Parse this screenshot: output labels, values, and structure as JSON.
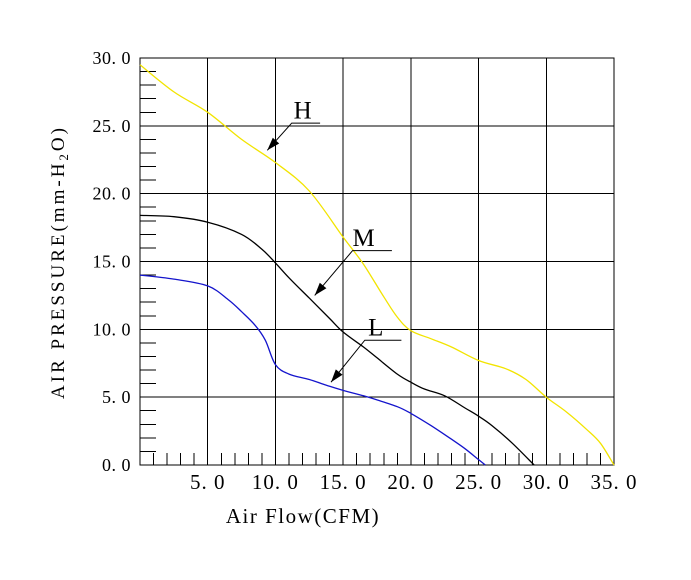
{
  "page": {
    "background_color": "#ffffff"
  },
  "chart_data": {
    "type": "line",
    "title": "",
    "xlabel": "Air Flow(CFM)",
    "ylabel": "AIR PRESSURE(mm-H2O)",
    "ylabel_display": {
      "prefix": "AIR PRESSURE(mm-H",
      "sub": "2",
      "suffix": "O)"
    },
    "xlim": [
      0,
      35
    ],
    "ylim": [
      0,
      30
    ],
    "x_ticks": [
      5,
      10,
      15,
      20,
      25,
      30,
      35
    ],
    "x_tick_labels": [
      "5. 0",
      "10. 0",
      "15. 0",
      "20. 0",
      "25. 0",
      "30. 0",
      "35. 0"
    ],
    "y_ticks": [
      0,
      5,
      10,
      15,
      20,
      25,
      30
    ],
    "y_tick_labels": [
      "0. 0",
      "5. 0",
      "10. 0",
      "15. 0",
      "20. 0",
      "25. 0",
      "30. 0"
    ],
    "minor_tick_interval": 1,
    "grid": true,
    "axis_color": "#000000",
    "legend_position": "inline-leader-labels",
    "series": [
      {
        "name": "H",
        "color": "#f2e400",
        "x": [
          0,
          2.5,
          5,
          7.5,
          10,
          12.5,
          15,
          16.5,
          18,
          19,
          20,
          21.5,
          23,
          25,
          27,
          28.5,
          30,
          31.5,
          33,
          34,
          35
        ],
        "y": [
          29.5,
          27.5,
          26.0,
          24.0,
          22.3,
          20.2,
          16.8,
          14.8,
          12.4,
          10.9,
          9.9,
          9.3,
          8.7,
          7.7,
          7.1,
          6.3,
          5.0,
          3.9,
          2.6,
          1.6,
          0
        ]
      },
      {
        "name": "M",
        "color": "#000000",
        "x": [
          0,
          2.5,
          5,
          7.5,
          9,
          10,
          11,
          12.5,
          14,
          15,
          16.5,
          17.5,
          19,
          20,
          21,
          22.5,
          24,
          25,
          26,
          27.5,
          29.1
        ],
        "y": [
          18.4,
          18.3,
          17.9,
          17.0,
          15.9,
          14.9,
          13.8,
          12.3,
          10.8,
          9.8,
          8.7,
          7.9,
          6.7,
          6.1,
          5.6,
          5.1,
          4.2,
          3.6,
          2.9,
          1.6,
          0
        ]
      },
      {
        "name": "L",
        "color": "#1414cc",
        "x": [
          0,
          2.5,
          5,
          6.5,
          7.5,
          8.5,
          9.25,
          10,
          11,
          12.5,
          14,
          15,
          16.5,
          17.5,
          19,
          20,
          21.5,
          23,
          24,
          25,
          25.5
        ],
        "y": [
          14.0,
          13.7,
          13.2,
          12.2,
          11.3,
          10.3,
          9.2,
          7.4,
          6.7,
          6.3,
          5.8,
          5.5,
          5.1,
          4.8,
          4.3,
          3.8,
          2.9,
          1.9,
          1.2,
          0.4,
          0
        ]
      }
    ],
    "annotations": [
      {
        "label": "H",
        "tip": [
          9.4,
          23.2
        ],
        "elbow": [
          11.2,
          25.2
        ],
        "underline_end": 13.3
      },
      {
        "label": "M",
        "tip": [
          12.9,
          12.5
        ],
        "elbow": [
          15.7,
          15.8
        ],
        "underline_end": 18.6
      },
      {
        "label": "L",
        "tip": [
          14.1,
          6.1
        ],
        "elbow": [
          16.6,
          9.2
        ],
        "underline_end": 19.3
      }
    ]
  }
}
